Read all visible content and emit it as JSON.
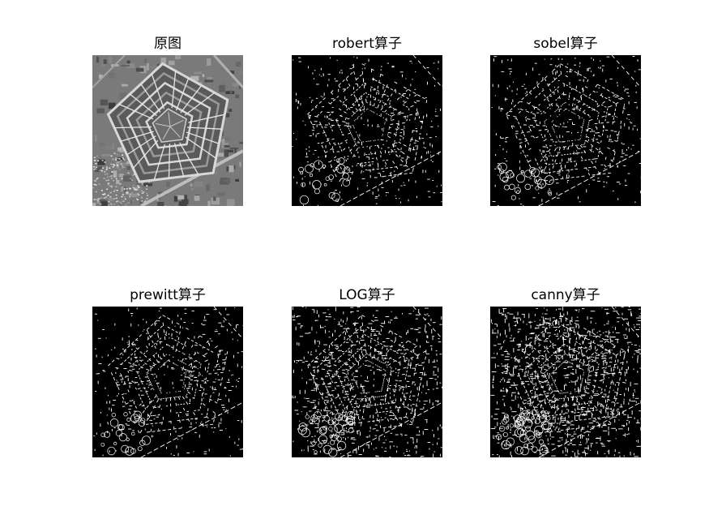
{
  "panels": [
    {
      "title": "原图",
      "kind": "original"
    },
    {
      "title": "robert算子",
      "kind": "edge",
      "density": 0.35
    },
    {
      "title": "sobel算子",
      "kind": "edge",
      "density": 0.38
    },
    {
      "title": "prewitt算子",
      "kind": "edge",
      "density": 0.38
    },
    {
      "title": "LOG算子",
      "kind": "edge",
      "density": 0.75
    },
    {
      "title": "canny算子",
      "kind": "edge",
      "density": 1.0
    }
  ]
}
